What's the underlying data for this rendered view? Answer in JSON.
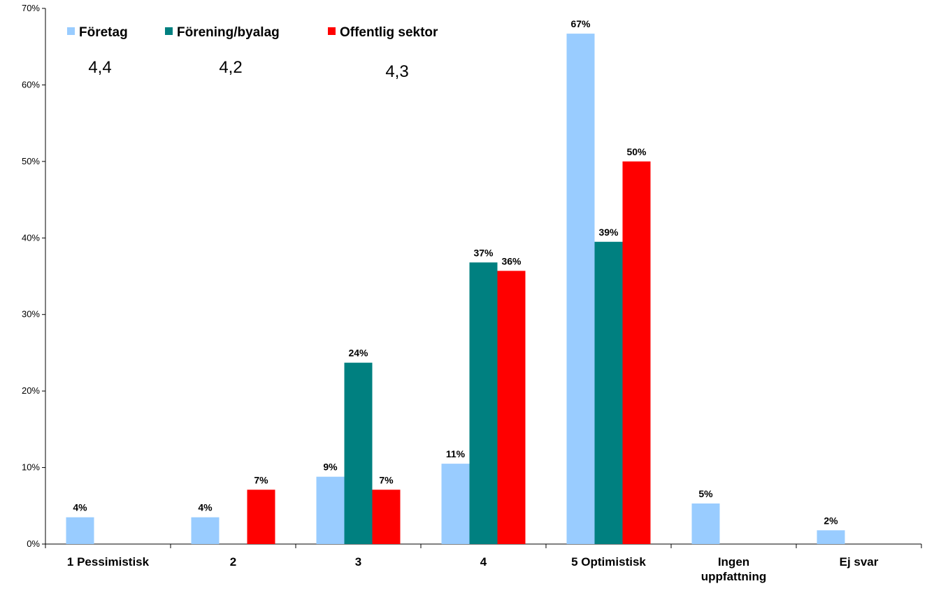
{
  "chart_data": {
    "type": "bar",
    "title": "",
    "xlabel": "",
    "ylabel": "",
    "ylim": [
      0,
      70
    ],
    "yticks": [
      "0%",
      "10%",
      "20%",
      "30%",
      "40%",
      "50%",
      "60%",
      "70%"
    ],
    "ytick_values": [
      0,
      10,
      20,
      30,
      40,
      50,
      60,
      70
    ],
    "grid": false,
    "legend_position": "top-left",
    "categories": [
      [
        "1 Pessimistisk"
      ],
      [
        "2"
      ],
      [
        "3"
      ],
      [
        "4"
      ],
      [
        "5 Optimistisk"
      ],
      [
        "Ingen",
        "uppfattning"
      ],
      [
        "Ej svar"
      ]
    ],
    "series": [
      {
        "name": "Företag",
        "color": "#99ccff",
        "values": [
          3.5,
          3.5,
          8.8,
          10.5,
          66.7,
          5.3,
          1.8
        ],
        "labels": [
          "4%",
          "4%",
          "9%",
          "11%",
          "67%",
          "5%",
          "2%"
        ]
      },
      {
        "name": "Förening/byalag",
        "color": "#008080",
        "values": [
          0,
          0,
          23.7,
          36.8,
          39.5,
          0,
          0
        ],
        "labels": [
          "",
          "",
          "24%",
          "37%",
          "39%",
          "",
          ""
        ]
      },
      {
        "name": "Offentlig sektor",
        "color": "#ff0000",
        "values": [
          0,
          7.1,
          7.1,
          35.7,
          50.0,
          0,
          0
        ],
        "labels": [
          "",
          "7%",
          "7%",
          "36%",
          "50%",
          "",
          ""
        ]
      }
    ],
    "annotations": [
      "4,4",
      "4,2",
      "4,3"
    ]
  }
}
